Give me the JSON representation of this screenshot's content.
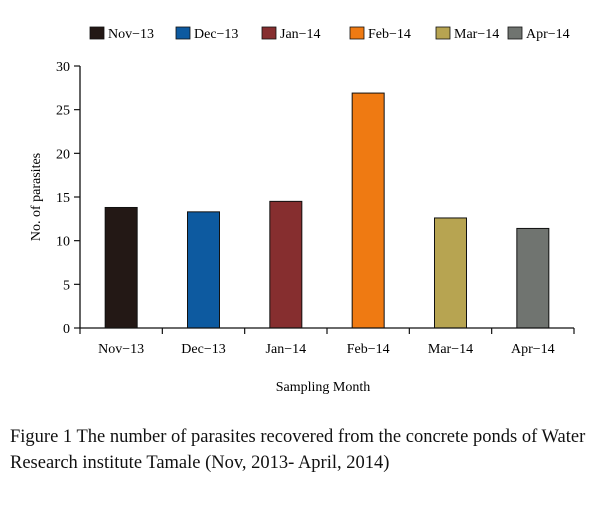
{
  "chart_data": {
    "type": "bar",
    "categories": [
      "Nov−13",
      "Dec−13",
      "Jan−14",
      "Feb−14",
      "Mar−14",
      "Apr−14"
    ],
    "values": [
      13.8,
      13.3,
      14.5,
      26.9,
      12.6,
      11.4
    ],
    "colors": [
      "#231815",
      "#0d5aa0",
      "#862e2f",
      "#ef7a12",
      "#b7a451",
      "#707470"
    ],
    "title": "",
    "xlabel": "Sampling Month",
    "ylabel": "No. of parasites",
    "ylim": [
      0,
      30
    ],
    "yticks": [
      0,
      5,
      10,
      15,
      20,
      25,
      30
    ],
    "legend": "top",
    "grid": false
  },
  "caption": "Figure 1 The number of parasites recovered from the concrete ponds of Water Research institute Tamale (Nov, 2013- April, 2014)"
}
